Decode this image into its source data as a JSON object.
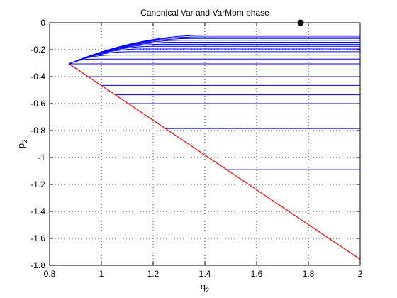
{
  "chart_data": {
    "type": "line",
    "title": "Canonical Var and VarMom phase",
    "xlabel": "q",
    "xlabel_sub": "2",
    "ylabel": "p",
    "ylabel_sub": "2",
    "xlim": [
      0.8,
      2.0
    ],
    "ylim": [
      -1.8,
      0.0
    ],
    "xticks": [
      0.8,
      1.0,
      1.2,
      1.4,
      1.6,
      1.8,
      2.0
    ],
    "xtick_labels": [
      "0.8",
      "1",
      "1.2",
      "1.4",
      "1.6",
      "1.8",
      "2"
    ],
    "yticks": [
      0.0,
      -0.2,
      -0.4,
      -0.6,
      -0.8,
      -1.0,
      -1.2,
      -1.4,
      -1.6,
      -1.8
    ],
    "ytick_labels": [
      "0",
      "-0.2",
      "-0.4",
      "-0.6",
      "-0.8",
      "-1",
      "-1.2",
      "-1.4",
      "-1.6",
      "-1.8"
    ],
    "grid": true,
    "colors": {
      "trajectories": "#0000ff",
      "boundary": "#ff0000",
      "marker": "#000000"
    },
    "fan_origin": {
      "x": 0.875,
      "y": -0.305
    },
    "trajectory_levels": [
      -0.093,
      -0.105,
      -0.117,
      -0.13,
      -0.145,
      -0.16,
      -0.175,
      -0.195,
      -0.215,
      -0.24,
      -0.27,
      -0.305,
      -0.35,
      -0.4,
      -0.465,
      -0.535,
      -0.6,
      -0.785,
      -1.09
    ],
    "boundary_line": {
      "x": [
        0.875,
        2.0
      ],
      "y": [
        -0.305,
        -1.755
      ]
    },
    "marker": {
      "x": 1.77,
      "y": 0.0
    }
  }
}
